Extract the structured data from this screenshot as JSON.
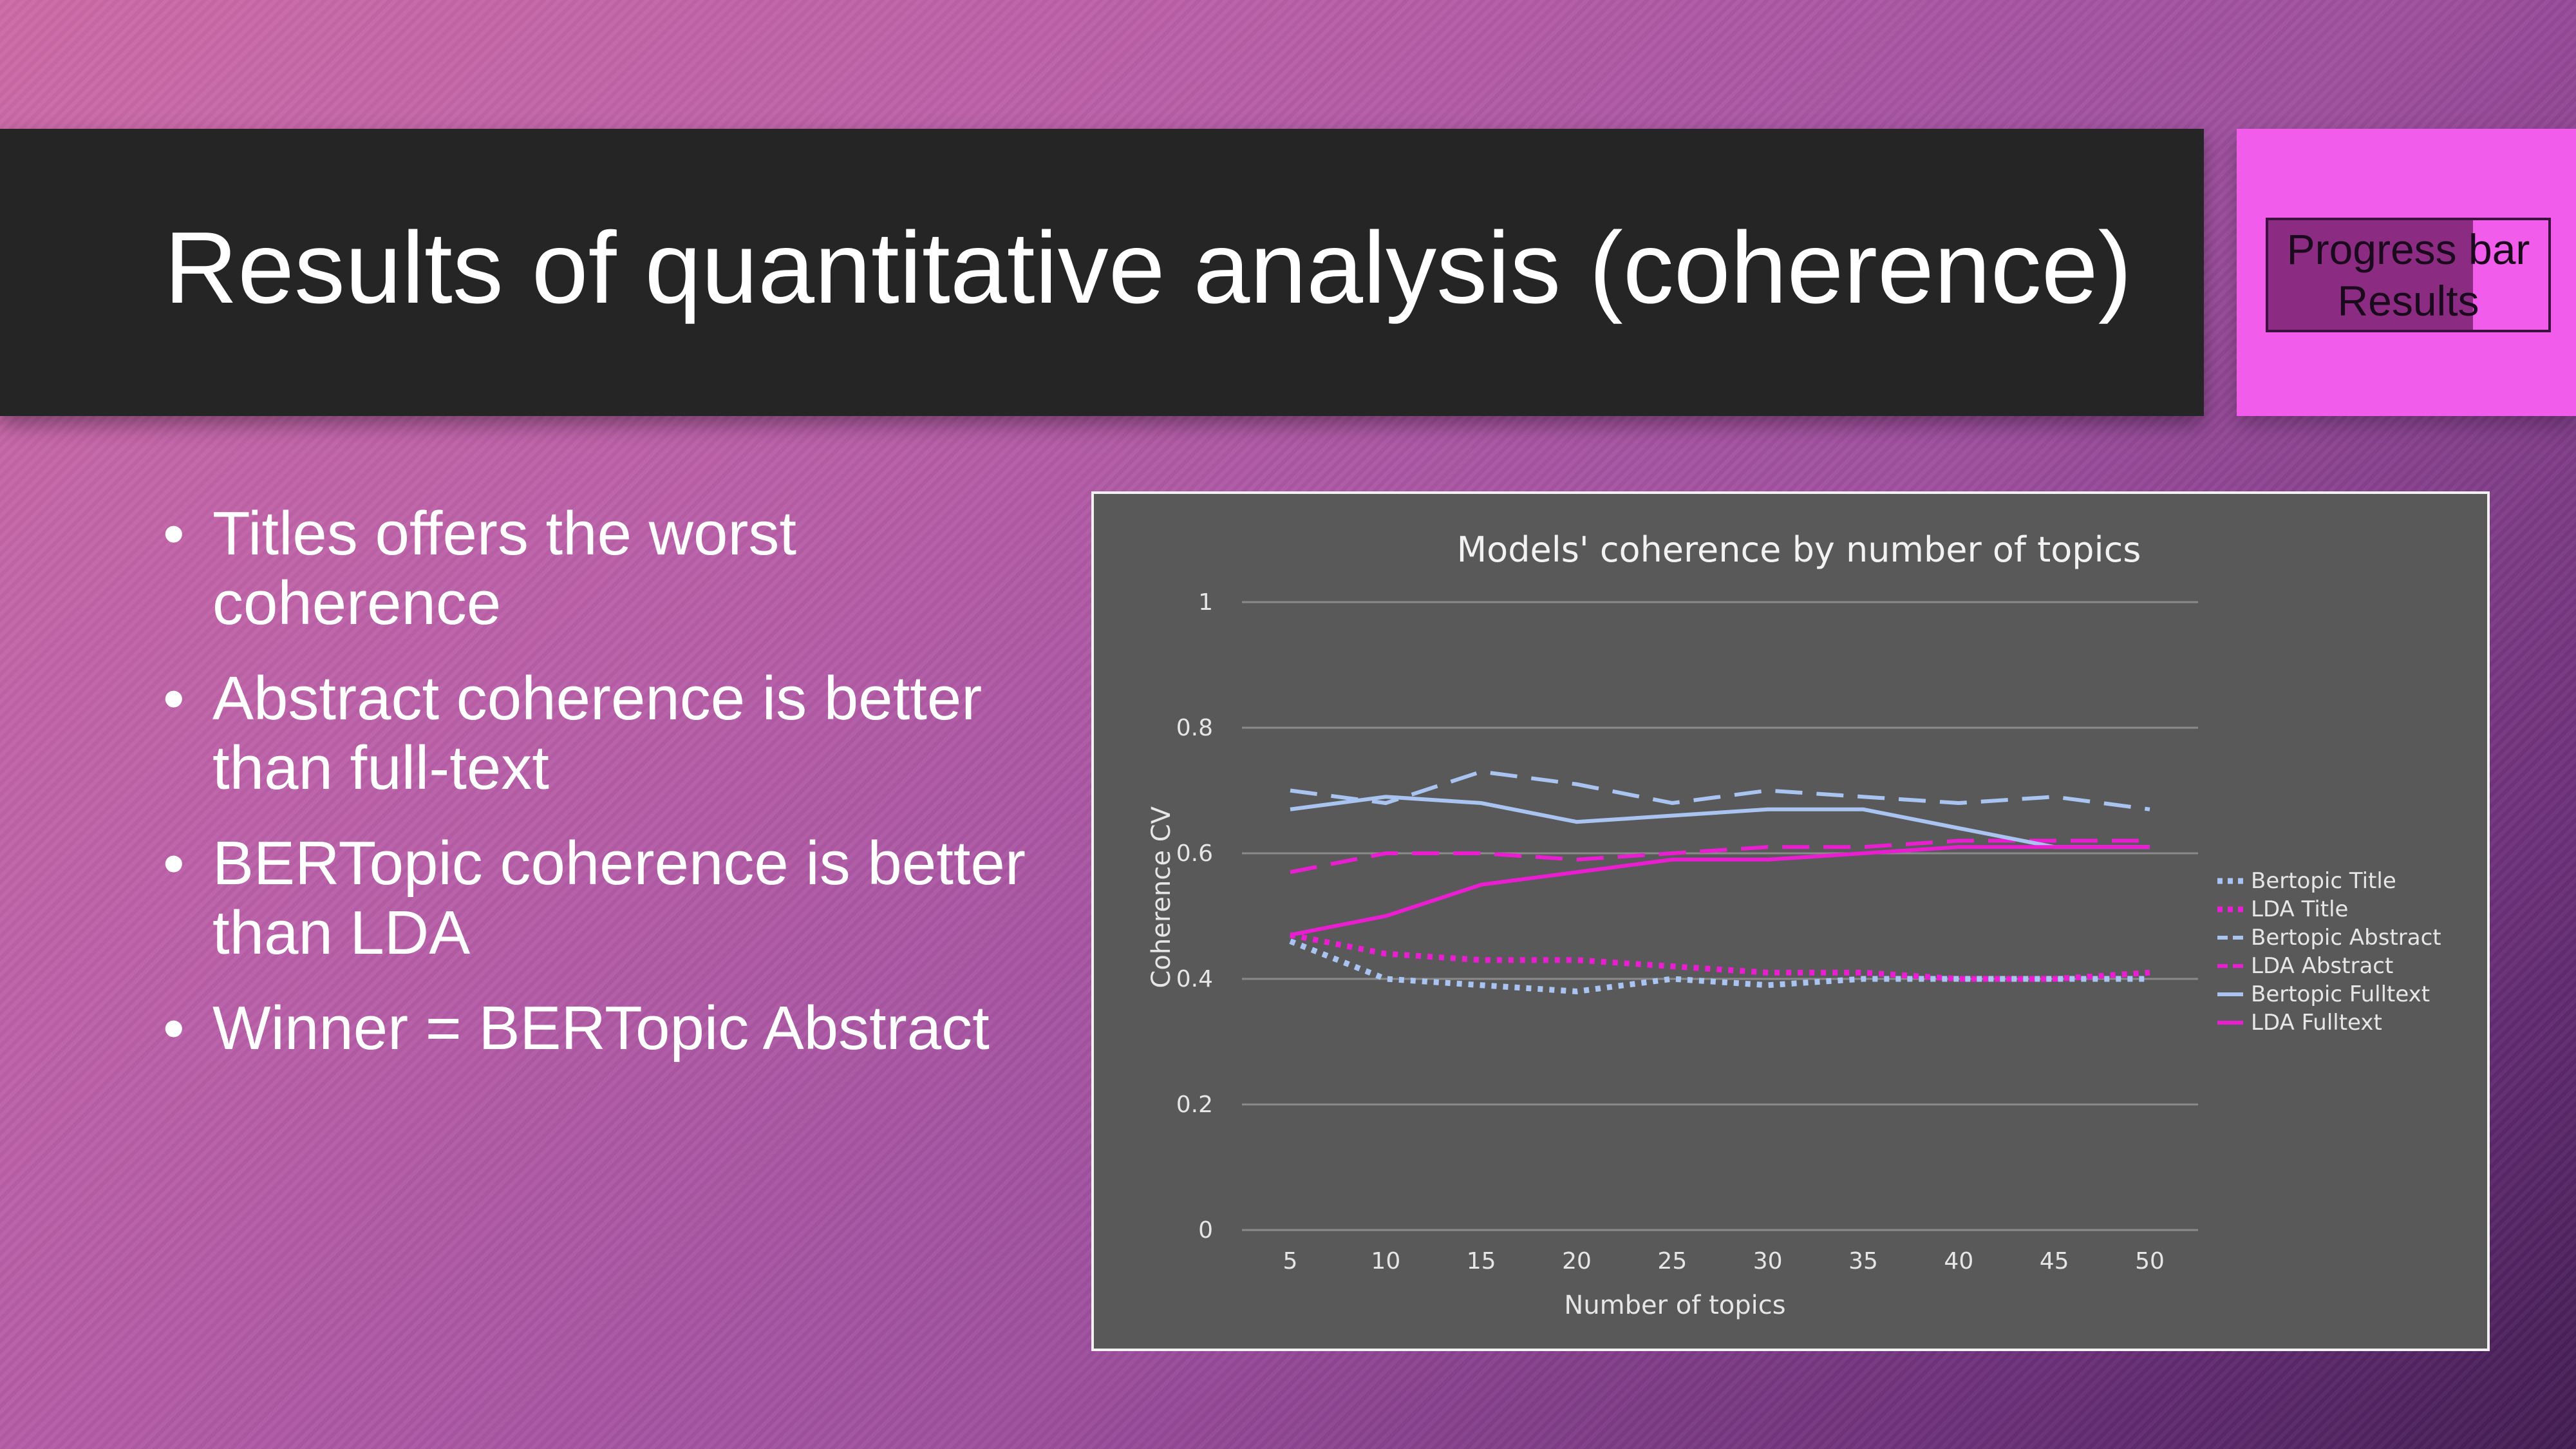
{
  "header": {
    "title": "Results of quantitative analysis (coherence)"
  },
  "progress": {
    "line1": "Progress bar",
    "line2": "Results",
    "fill_fraction": 0.73,
    "fill_color": "#8b2b82",
    "track_color": "#f15cea"
  },
  "bullets": [
    "Titles offers the worst coherence",
    "Abstract coherence is better than full-text",
    "BERTopic coherence is better than LDA",
    "Winner = BERTopic Abstract"
  ],
  "chart_data": {
    "type": "line",
    "title": "Models' coherence by number of topics",
    "xlabel": "Number of topics",
    "ylabel": "Coherence CV",
    "x": [
      5,
      10,
      15,
      20,
      25,
      30,
      35,
      40,
      45,
      50
    ],
    "ylim": [
      0,
      1
    ],
    "yticks": [
      "0",
      "0.2",
      "0.4",
      "0.6",
      "0.8",
      "1"
    ],
    "grid": true,
    "legend_position": "right",
    "series": [
      {
        "name": "Bertopic Title",
        "color": "#a9c4f0",
        "style": "dotted",
        "values": [
          0.46,
          0.4,
          0.39,
          0.38,
          0.4,
          0.39,
          0.4,
          0.4,
          0.4,
          0.4
        ]
      },
      {
        "name": "LDA Title",
        "color": "#e81ed0",
        "style": "dotted",
        "values": [
          0.47,
          0.44,
          0.43,
          0.43,
          0.42,
          0.41,
          0.41,
          0.4,
          0.4,
          0.41
        ]
      },
      {
        "name": "Bertopic Abstract",
        "color": "#a9c4f0",
        "style": "dashed",
        "values": [
          0.7,
          0.68,
          0.73,
          0.71,
          0.68,
          0.7,
          0.69,
          0.68,
          0.69,
          0.67
        ]
      },
      {
        "name": "LDA Abstract",
        "color": "#e81ed0",
        "style": "dashed",
        "values": [
          0.57,
          0.6,
          0.6,
          0.59,
          0.6,
          0.61,
          0.61,
          0.62,
          0.62,
          0.62
        ]
      },
      {
        "name": "Bertopic Fulltext",
        "color": "#a9c4f0",
        "style": "solid",
        "values": [
          0.67,
          0.69,
          0.68,
          0.65,
          0.66,
          0.67,
          0.67,
          0.64,
          0.61,
          0.61
        ]
      },
      {
        "name": "LDA Fulltext",
        "color": "#e81ed0",
        "style": "solid",
        "values": [
          0.47,
          0.5,
          0.55,
          0.57,
          0.59,
          0.59,
          0.6,
          0.61,
          0.61,
          0.61
        ]
      }
    ]
  }
}
